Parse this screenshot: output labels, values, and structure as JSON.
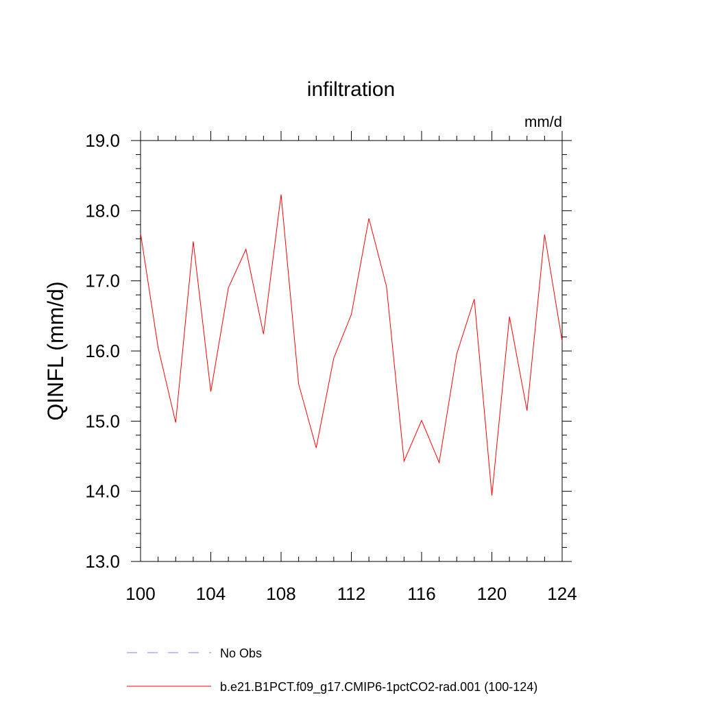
{
  "chart_data": {
    "type": "line",
    "title": "infiltration",
    "units_label": "mm/d",
    "ylabel": "QINFL  (mm/d)",
    "xlabel": "",
    "xlim": [
      100,
      124
    ],
    "ylim": [
      13.0,
      19.0
    ],
    "x_ticks": [
      100,
      104,
      108,
      112,
      116,
      120,
      124
    ],
    "x_tick_labels": [
      "100",
      "104",
      "108",
      "112",
      "116",
      "120",
      "124"
    ],
    "y_ticks": [
      13.0,
      14.0,
      15.0,
      16.0,
      17.0,
      18.0,
      19.0
    ],
    "y_tick_labels": [
      "13.0",
      "14.0",
      "15.0",
      "16.0",
      "17.0",
      "18.0",
      "19.0"
    ],
    "grid": false,
    "legend_placement": "bottom",
    "series": [
      {
        "name": "b.e21.B1PCT.f09_g17.CMIP6-1pctCO2-rad.001 (100-124)",
        "color": "#ff0000",
        "style": "solid",
        "x": [
          100,
          101,
          102,
          103,
          104,
          105,
          106,
          107,
          108,
          109,
          110,
          111,
          112,
          113,
          114,
          115,
          116,
          117,
          118,
          119,
          120,
          121,
          122,
          123,
          124
        ],
        "values": [
          17.68,
          16.05,
          14.98,
          17.56,
          15.42,
          16.9,
          17.45,
          16.24,
          18.23,
          15.53,
          14.62,
          15.9,
          16.52,
          17.89,
          16.92,
          14.43,
          15.01,
          14.41,
          15.96,
          16.74,
          13.94,
          16.49,
          15.15,
          17.66,
          16.14
        ]
      }
    ],
    "legend": [
      {
        "label": "No Obs",
        "color": "#8080ff",
        "style": "dashed"
      },
      {
        "label": "b.e21.B1PCT.f09_g17.CMIP6-1pctCO2-rad.001 (100-124)",
        "color": "#ff0000",
        "style": "solid"
      }
    ]
  }
}
